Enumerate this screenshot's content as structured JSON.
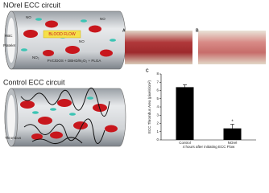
{
  "left": {
    "norel_title": "NOrel ECC circuit",
    "rbc": "RBC",
    "platelet": "Platelet",
    "blood_flow": "BLOOD FLOW",
    "coating": "PVC/DOS + DBHD/N₂O₂ + PLGA",
    "no": "NO",
    "no2": "NO₂",
    "control_title": "Control ECC circuit",
    "thrombus": "Thrombus"
  },
  "photos": [
    "A",
    "B"
  ],
  "chart_data": {
    "type": "bar",
    "panel_label": "C",
    "y_label": "ECC Thrombus Area (pixels/cm²)",
    "x_label": "4 hours after initiating ECC Flow",
    "categories": [
      "Control",
      "NOrel"
    ],
    "values": [
      6.4,
      1.4
    ],
    "errors": [
      0.3,
      0.5
    ],
    "significance": "*",
    "color": "#000000",
    "ylim": [
      0,
      8
    ],
    "yticks": [
      0,
      1,
      2,
      3,
      4,
      5,
      6,
      7,
      8
    ]
  }
}
